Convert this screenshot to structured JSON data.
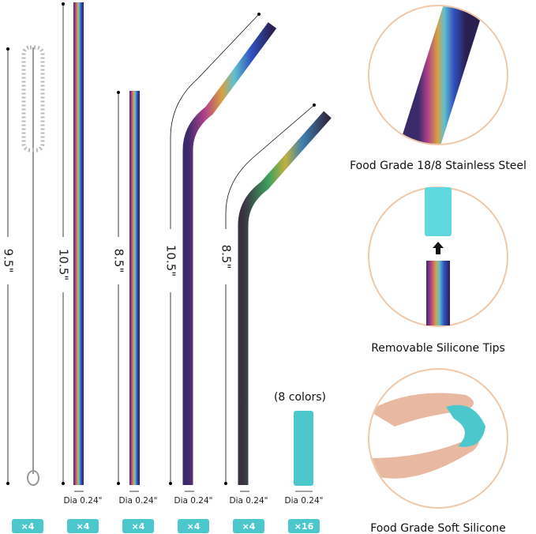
{
  "items": [
    {
      "length": "9.5\"",
      "count": "×4"
    },
    {
      "length": "10.5\"",
      "diameter": "Dia 0.24\"",
      "count": "×4"
    },
    {
      "length": "8.5\"",
      "diameter": "Dia 0.24\"",
      "count": "×4"
    },
    {
      "length": "10.5\"",
      "diameter": "Dia 0.24\"",
      "count": "×4"
    },
    {
      "length": "8.5\"",
      "diameter": "Dia 0.24\"",
      "count": "×4"
    },
    {
      "note": "(8 colors)",
      "diameter": "Dia 0.24\"",
      "count": "×16"
    }
  ],
  "features": [
    "Food Grade 18/8 Stainless Steel",
    "Removable Silicone Tips",
    "Food Grade Soft Silicone"
  ]
}
